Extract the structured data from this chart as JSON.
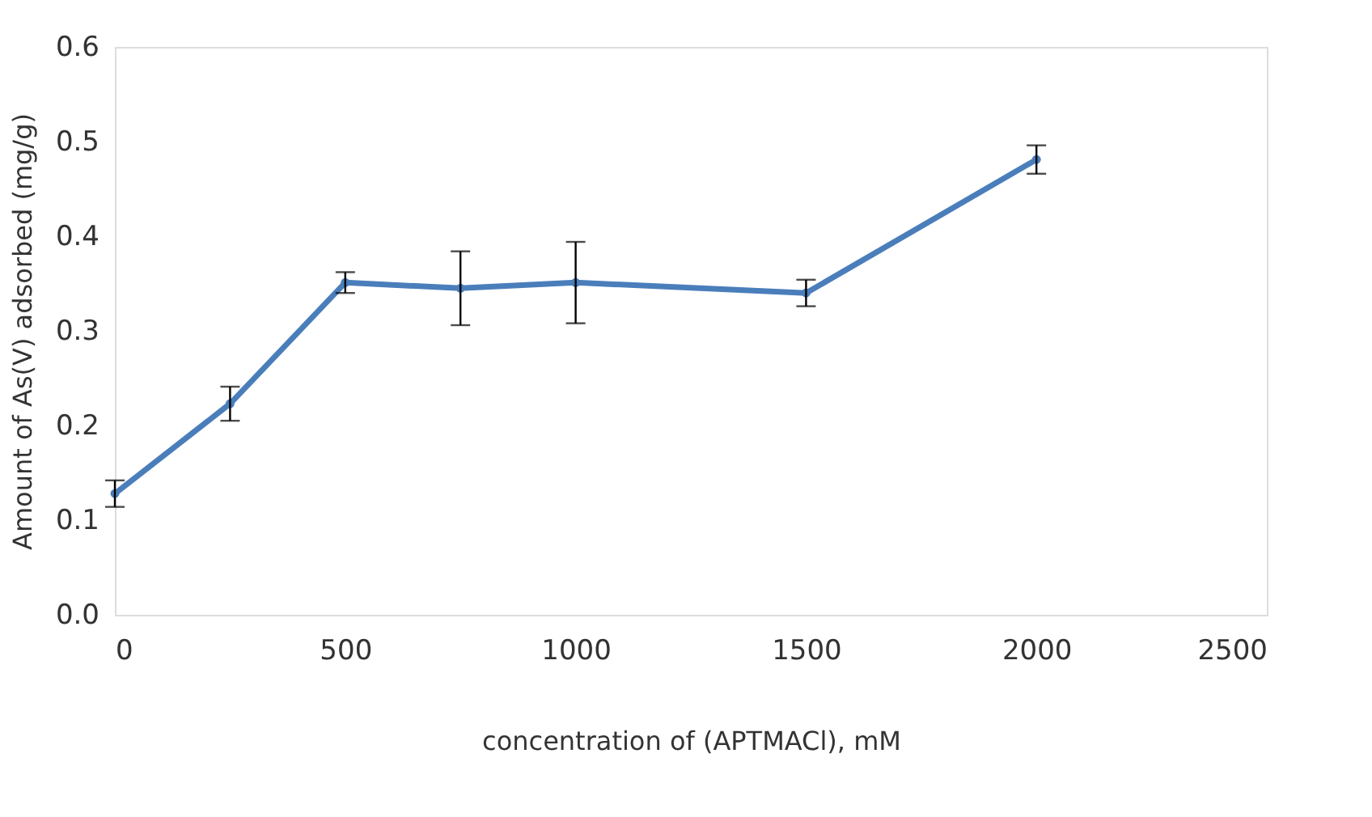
{
  "chart_data": {
    "type": "line",
    "xlabel": "concentration of (APTMACl), mM",
    "ylabel": "Amount of As(V) adsorbed (mg/g)",
    "x": [
      0,
      250,
      500,
      750,
      1000,
      1500,
      2000
    ],
    "series": [
      {
        "color": "#4a7ebb",
        "values": [
          0.128,
          0.223,
          0.351,
          0.345,
          0.351,
          0.34,
          0.481
        ],
        "errors": [
          0.014,
          0.018,
          0.011,
          0.039,
          0.043,
          0.014,
          0.015
        ]
      }
    ],
    "xlim": [
      0,
      2500
    ],
    "xticks": [
      0,
      500,
      1000,
      1500,
      2000,
      2500
    ],
    "ylim": [
      0,
      0.6
    ],
    "yticks": [
      {
        "value": 0,
        "label": "0.0"
      },
      {
        "value": 0.1,
        "label": "0.1"
      },
      {
        "value": 0.2,
        "label": "0.2"
      },
      {
        "value": 0.3,
        "label": "0.3"
      },
      {
        "value": 0.4,
        "label": "0.4"
      },
      {
        "value": 0.5,
        "label": "0.5"
      },
      {
        "value": 0.6,
        "label": "0.6"
      }
    ],
    "grid": false,
    "marker": "circle",
    "line_style": "solid"
  }
}
